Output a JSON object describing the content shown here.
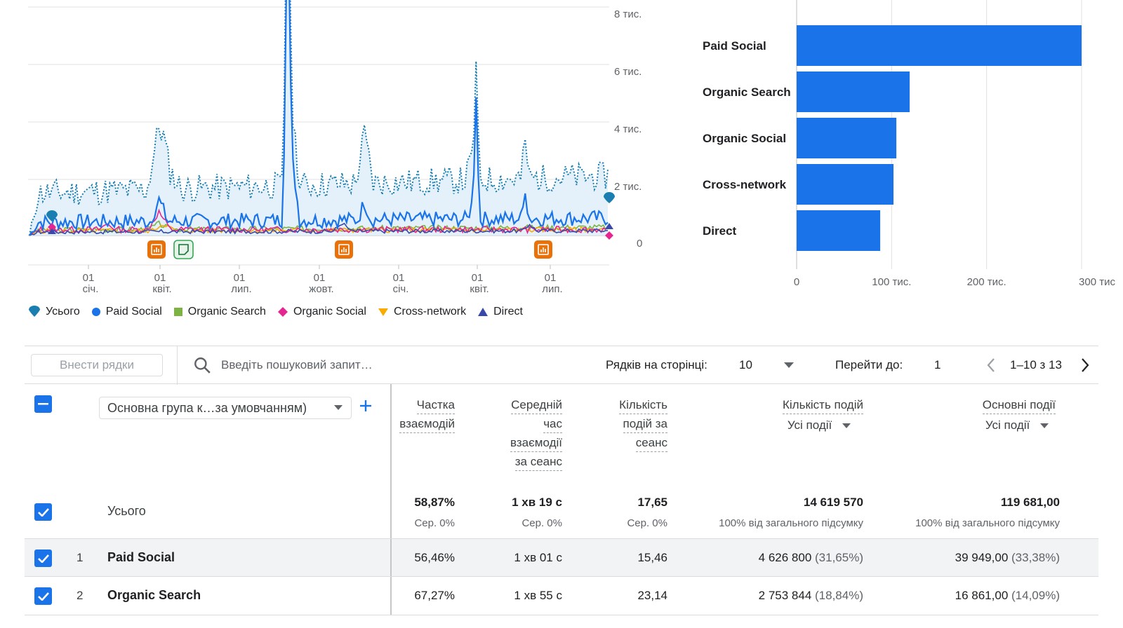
{
  "line_chart": {
    "y_ticks": [
      "8 тис.",
      "6 тис.",
      "4 тис.",
      "2 тис.",
      "0"
    ],
    "x_ticks": [
      {
        "day": "01",
        "month": "січ."
      },
      {
        "day": "01",
        "month": "квіт."
      },
      {
        "day": "01",
        "month": "лип."
      },
      {
        "day": "01",
        "month": "жовт."
      },
      {
        "day": "01",
        "month": "січ."
      },
      {
        "day": "01",
        "month": "квіт."
      },
      {
        "day": "01",
        "month": "лип."
      }
    ],
    "annotations": [
      "annotation-icon",
      "note-icon",
      "annotation-icon",
      "annotation-icon"
    ]
  },
  "chart_data": {
    "type": "bar",
    "orientation": "horizontal",
    "categories": [
      "Paid Social",
      "Organic Search",
      "Organic Social",
      "Cross-network",
      "Direct"
    ],
    "values": [
      300000,
      119000,
      105000,
      102000,
      88000
    ],
    "x_ticks": [
      "0",
      "100 тис.",
      "200 тис.",
      "300 тис"
    ],
    "xlim": [
      0,
      300000
    ],
    "color": "#1a73e8",
    "grid": true
  },
  "legend": [
    {
      "label": "Усього",
      "icon": "total-pin-icon",
      "color": "#1a7fb0"
    },
    {
      "label": "Paid Social",
      "icon": "circle",
      "color": "#1a73e8"
    },
    {
      "label": "Organic Search",
      "icon": "square",
      "color": "#7cb342"
    },
    {
      "label": "Organic Social",
      "icon": "diamond",
      "color": "#e52592"
    },
    {
      "label": "Cross-network",
      "icon": "triangle-down",
      "color": "#f9ab00"
    },
    {
      "label": "Direct",
      "icon": "triangle-up",
      "color": "#3949ab"
    }
  ],
  "toolbar": {
    "add_rows_label": "Внести рядки",
    "search_placeholder": "Введіть пошуковий запит…",
    "rows_per_page_label": "Рядків на сторінці:",
    "rows_per_page_value": "10",
    "go_to_label": "Перейти до:",
    "go_to_value": "1",
    "range_text": "1–10 з 13"
  },
  "table": {
    "dimension_select": "Основна група к…за умовчанням)",
    "headers": {
      "engagement_rate": [
        "Частка",
        "взаємодій"
      ],
      "avg_engagement_time": [
        "Середній",
        "час",
        "взаємодії",
        "за сеанс"
      ],
      "events_per_session": [
        "Кількість",
        "подій за",
        "сеанс"
      ],
      "event_count": [
        "Кількість подій"
      ],
      "event_count_filter": "Усі події",
      "key_events": [
        "Основні події"
      ],
      "key_events_filter": "Усі події"
    },
    "total": {
      "label": "Усього",
      "engagement_rate": "58,87%",
      "engagement_rate_sub": "Сер. 0%",
      "avg_time": "1 хв 19 с",
      "avg_time_sub": "Сер. 0%",
      "events_per_session": "17,65",
      "events_per_session_sub": "Сер. 0%",
      "event_count": "14 619 570",
      "event_count_sub": "100% від загального підсумку",
      "key_events": "119 681,00",
      "key_events_sub": "100% від загального підсумку"
    },
    "rows": [
      {
        "index": "1",
        "name": "Paid Social",
        "engagement_rate": "56,46%",
        "avg_time": "1 хв 01 с",
        "events_per_session": "15,46",
        "event_count": "4 626 800",
        "event_count_pct": "(31,65%)",
        "key_events": "39 949,00",
        "key_events_pct": "(33,38%)"
      },
      {
        "index": "2",
        "name": "Organic Search",
        "engagement_rate": "67,27%",
        "avg_time": "1 хв 55 с",
        "events_per_session": "23,14",
        "event_count": "2 753 844",
        "event_count_pct": "(18,84%)",
        "key_events": "16 861,00",
        "key_events_pct": "(14,09%)"
      }
    ]
  }
}
